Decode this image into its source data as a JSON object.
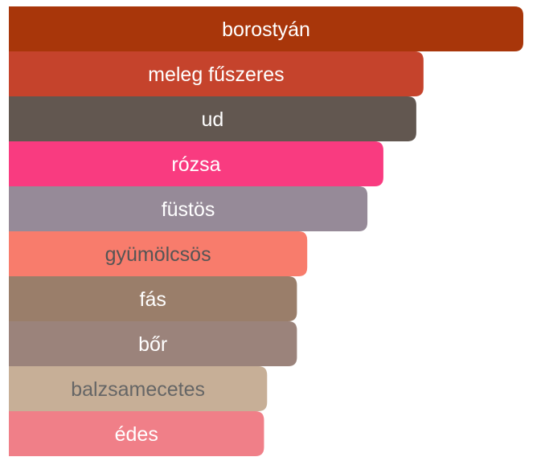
{
  "chart_data": {
    "type": "bar",
    "orientation": "horizontal",
    "categories": [
      "borostyán",
      "meleg fűszeres",
      "ud",
      "rózsa",
      "füstös",
      "gyümölcsös",
      "fás",
      "bőr",
      "balzsamecetes",
      "édes"
    ],
    "values": [
      100,
      80.6,
      79.2,
      72.8,
      69.7,
      58.0,
      56.0,
      56.0,
      50.2,
      49.6
    ],
    "colors": [
      "#a8360a",
      "#c5432c",
      "#625750",
      "#f93b80",
      "#968a98",
      "#f87c6c",
      "#9a7e6a",
      "#9b837b",
      "#c7af97",
      "#f07f88"
    ],
    "label_colors": [
      "#ffffff",
      "#ffffff",
      "#ffffff",
      "#ffffff",
      "#ffffff",
      "#555555",
      "#ffffff",
      "#ffffff",
      "#666666",
      "#ffffff"
    ],
    "title": "",
    "xlabel": "",
    "ylabel": "",
    "xlim": [
      0,
      100
    ],
    "grid": false,
    "legend": "none"
  }
}
